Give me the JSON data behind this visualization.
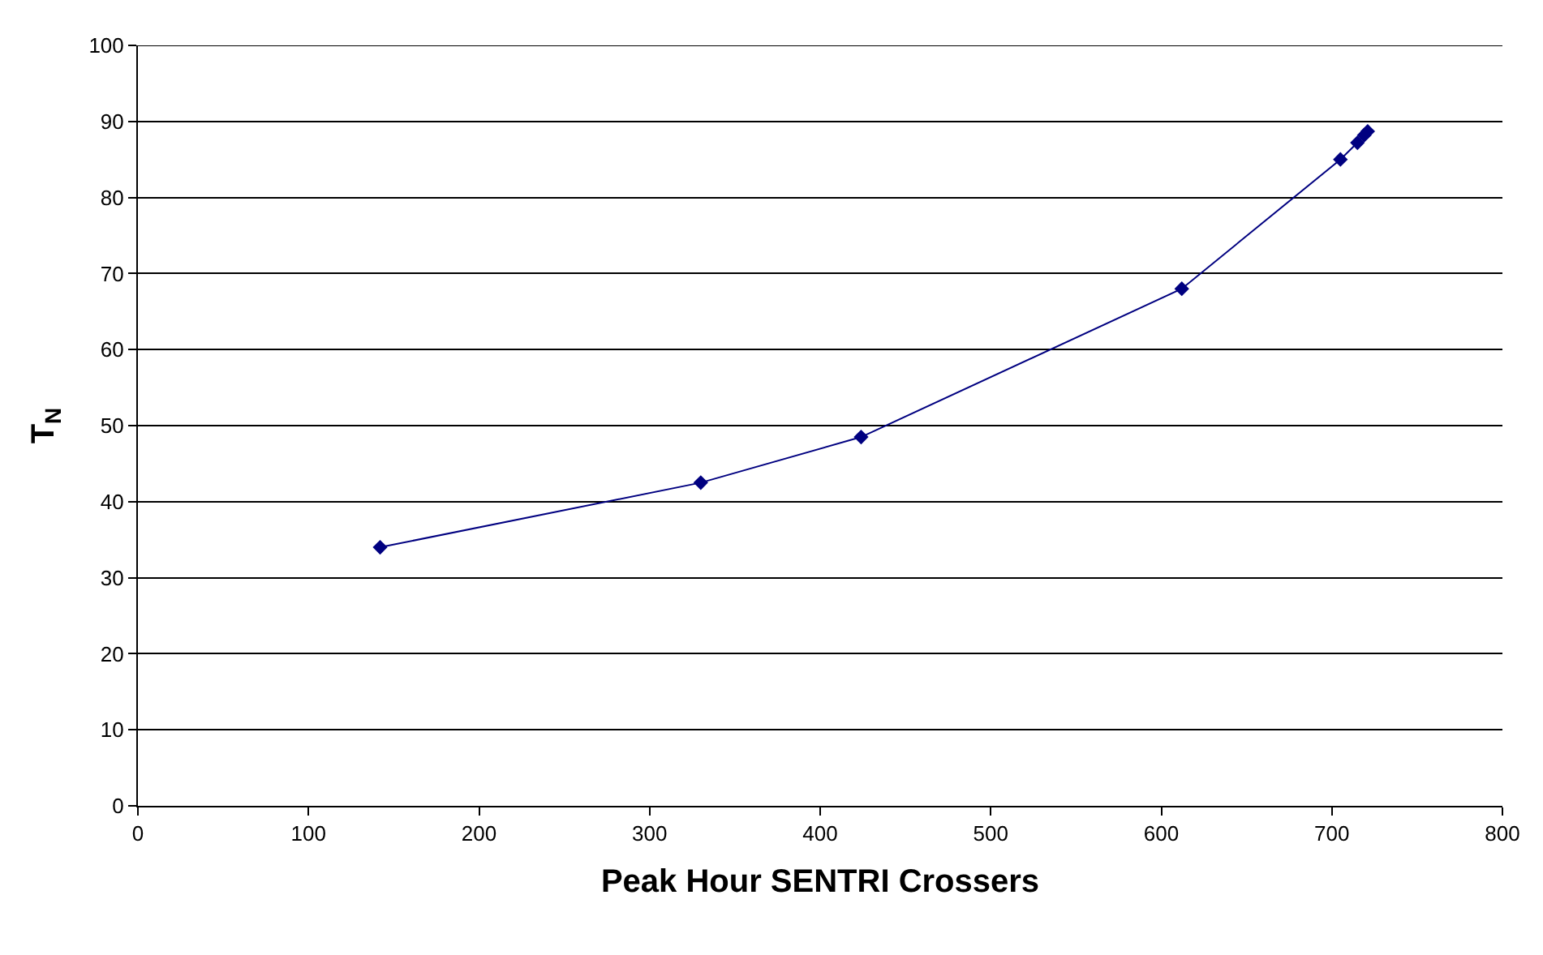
{
  "chart_data": {
    "type": "line",
    "xlabel": "Peak Hour SENTRI Crossers",
    "ylabel": "T$_{N}$",
    "x": [
      142,
      330,
      424,
      612,
      705,
      715,
      719,
      721
    ],
    "series": [
      {
        "color": "#000080",
        "values": [
          34,
          42.5,
          48.5,
          68,
          85,
          87.2,
          88.2,
          88.7
        ]
      }
    ],
    "xlim": [
      0,
      800
    ],
    "xticks": [
      0,
      100,
      200,
      300,
      400,
      500,
      600,
      700,
      800
    ],
    "ylim": [
      0,
      100
    ],
    "yticks": [
      0,
      10,
      20,
      30,
      40,
      50,
      60,
      70,
      80,
      90,
      100
    ],
    "grid": "y",
    "marker": "diamond",
    "line_style": "solid"
  }
}
